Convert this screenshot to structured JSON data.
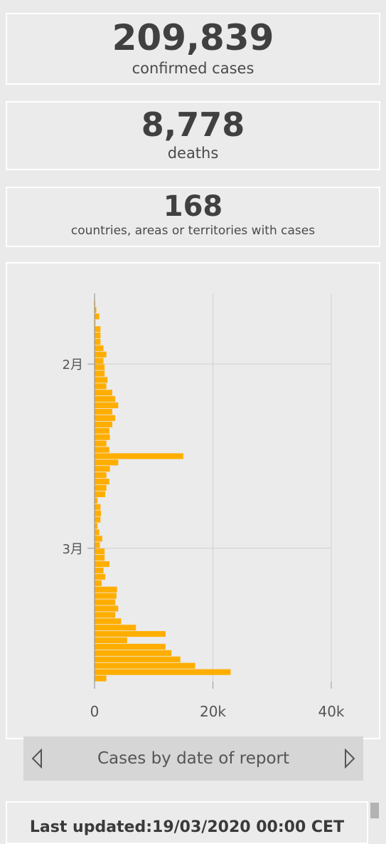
{
  "stats": {
    "confirmed": {
      "value": "209,839",
      "label": "confirmed cases"
    },
    "deaths": {
      "value": "8,778",
      "label": "deaths"
    },
    "countries": {
      "value": "168",
      "label": "countries, areas or territories with cases"
    }
  },
  "chart_nav": {
    "title": "Cases by date of report",
    "prev_icon": "triangle-left-icon",
    "next_icon": "triangle-right-icon"
  },
  "footer": {
    "last_updated": "Last updated:19/03/2020 00:00 CET"
  },
  "colors": {
    "bar": "#ffae00",
    "background": "#eaeaea",
    "grid": "#d0d0d0",
    "text": "#404040"
  },
  "chart_data": {
    "type": "bar",
    "orientation": "horizontal",
    "x_ticks": [
      {
        "value": 0,
        "label": "0"
      },
      {
        "value": 20000,
        "label": "20k"
      },
      {
        "value": 40000,
        "label": "40k"
      }
    ],
    "xlim": [
      0,
      40000
    ],
    "y_tick_labels": [
      {
        "label": "2月",
        "index": 10
      },
      {
        "label": "3月",
        "index": 39
      }
    ],
    "grid": true,
    "values": [
      50,
      300,
      800,
      150,
      1000,
      1000,
      1000,
      1500,
      2000,
      1500,
      1700,
      1700,
      2200,
      2000,
      3000,
      3500,
      4000,
      3000,
      3500,
      3000,
      2500,
      2600,
      2000,
      2500,
      15000,
      4000,
      2600,
      2000,
      2500,
      2000,
      1800,
      500,
      1000,
      1100,
      1000,
      500,
      800,
      1300,
      900,
      1700,
      1700,
      2500,
      1500,
      1800,
      1200,
      3800,
      3700,
      3500,
      4000,
      3500,
      4500,
      7000,
      12000,
      5500,
      12000,
      13000,
      14500,
      17000,
      23000,
      2000
    ]
  }
}
